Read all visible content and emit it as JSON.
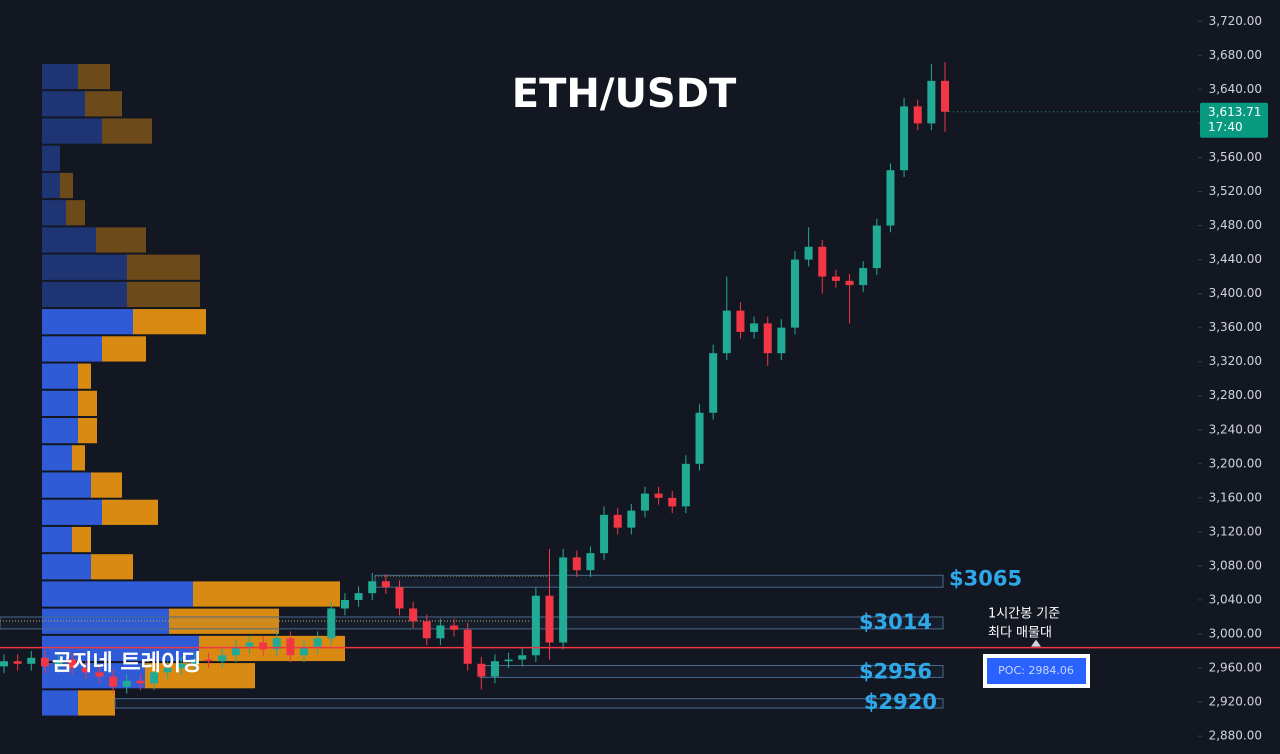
{
  "chart_data": {
    "type": "candlestick",
    "title": "ETH/USDT",
    "ylim": [
      2859,
      3745
    ],
    "yticks": [
      {
        "value": 3720,
        "label": "3,720.00"
      },
      {
        "value": 3680,
        "label": "3,680.00"
      },
      {
        "value": 3640,
        "label": "3,640.00"
      },
      {
        "value": 3600,
        "label": "3,600.00"
      },
      {
        "value": 3560,
        "label": "3,560.00"
      },
      {
        "value": 3520,
        "label": "3,520.00"
      },
      {
        "value": 3480,
        "label": "3,480.00"
      },
      {
        "value": 3440,
        "label": "3,440.00"
      },
      {
        "value": 3400,
        "label": "3,400.00"
      },
      {
        "value": 3360,
        "label": "3,360.00"
      },
      {
        "value": 3320,
        "label": "3,320.00"
      },
      {
        "value": 3280,
        "label": "3,280.00"
      },
      {
        "value": 3240,
        "label": "3,240.00"
      },
      {
        "value": 3200,
        "label": "3,200.00"
      },
      {
        "value": 3160,
        "label": "3,160.00"
      },
      {
        "value": 3120,
        "label": "3,120.00"
      },
      {
        "value": 3080,
        "label": "3,080.00"
      },
      {
        "value": 3040,
        "label": "3,040.00"
      },
      {
        "value": 3000,
        "label": "3,000.00"
      },
      {
        "value": 2960,
        "label": "2,960.00"
      },
      {
        "value": 2920,
        "label": "2,920.00"
      },
      {
        "value": 2880,
        "label": "2,880.00"
      }
    ],
    "up_color": "#22ab94",
    "down_color": "#f23645",
    "open": [
      2962,
      2968,
      2965,
      2972,
      2962,
      2970,
      2960,
      2955,
      2950,
      2938,
      2945,
      2942,
      2955,
      2960,
      2965,
      2970,
      2968,
      2975,
      2985,
      2990,
      2982,
      2995,
      2975,
      2985,
      2995,
      3030,
      3040,
      3048,
      3062,
      3055,
      3030,
      3015,
      2995,
      3010,
      3005,
      2965,
      2950,
      2968,
      2970,
      2975,
      3045,
      2990,
      3090,
      3075,
      3095,
      3140,
      3125,
      3145,
      3165,
      3160,
      3150,
      3200,
      3260,
      3330,
      3380,
      3355,
      3365,
      3330,
      3360,
      3440,
      3455,
      3420,
      3415,
      3410,
      3430,
      3480,
      3545,
      3620,
      3600,
      3650
    ],
    "high": [
      2976,
      2976,
      2980,
      2980,
      2978,
      2978,
      2968,
      2963,
      2958,
      2953,
      2953,
      2963,
      2968,
      2973,
      2978,
      2978,
      2983,
      2993,
      2998,
      2998,
      3003,
      3003,
      2993,
      3003,
      3038,
      3048,
      3056,
      3072,
      3070,
      3063,
      3038,
      3023,
      3018,
      3018,
      3013,
      2973,
      2976,
      2978,
      2983,
      3055,
      3100,
      3100,
      3098,
      3103,
      3150,
      3148,
      3153,
      3173,
      3173,
      3168,
      3210,
      3270,
      3340,
      3420,
      3390,
      3373,
      3373,
      3370,
      3450,
      3478,
      3463,
      3428,
      3423,
      3438,
      3488,
      3553,
      3630,
      3628,
      3670,
      3672
    ],
    "low": [
      2954,
      2957,
      2957,
      2954,
      2954,
      2952,
      2947,
      2942,
      2930,
      2930,
      2934,
      2934,
      2947,
      2952,
      2957,
      2960,
      2960,
      2967,
      2977,
      2974,
      2974,
      2967,
      2967,
      2977,
      2987,
      3022,
      3032,
      3040,
      3047,
      3022,
      3007,
      2987,
      2987,
      2997,
      2957,
      2935,
      2942,
      2960,
      2962,
      2967,
      2970,
      2982,
      3067,
      3067,
      3087,
      3117,
      3117,
      3137,
      3152,
      3142,
      3142,
      3192,
      3252,
      3322,
      3347,
      3347,
      3315,
      3322,
      3352,
      3432,
      3400,
      3407,
      3365,
      3402,
      3422,
      3472,
      3537,
      3592,
      3592,
      3590
    ],
    "close": [
      2968,
      2965,
      2972,
      2962,
      2970,
      2960,
      2955,
      2950,
      2938,
      2945,
      2942,
      2955,
      2960,
      2965,
      2970,
      2968,
      2975,
      2985,
      2990,
      2982,
      2995,
      2975,
      2985,
      2995,
      3030,
      3040,
      3048,
      3062,
      3055,
      3030,
      3015,
      2995,
      3010,
      3005,
      2965,
      2950,
      2968,
      2970,
      2975,
      3045,
      2990,
      3090,
      3075,
      3095,
      3140,
      3125,
      3145,
      3165,
      3160,
      3150,
      3200,
      3260,
      3330,
      3380,
      3355,
      3365,
      3330,
      3360,
      3440,
      3455,
      3420,
      3415,
      3410,
      3430,
      3480,
      3545,
      3620,
      3600,
      3650,
      3613.71
    ],
    "last_price": {
      "value": 3613.71,
      "label": "3,613.71",
      "time": "17:40",
      "color": "#089981"
    },
    "profile": {
      "bins": [
        3671,
        3639,
        3607,
        3575,
        3543,
        3511,
        3479,
        3447,
        3415,
        3383,
        3351,
        3319,
        3287,
        3255,
        3223,
        3191,
        3159,
        3127,
        3095,
        3063,
        3031,
        2999,
        2967,
        2935,
        2903
      ],
      "buy": [
        36,
        43,
        60,
        18,
        18,
        24,
        54,
        85,
        85,
        91,
        60,
        36,
        36,
        36,
        30,
        49,
        60,
        30,
        49,
        151,
        127,
        157,
        103,
        36
      ],
      "sell": [
        32,
        37,
        50,
        0,
        13,
        19,
        50,
        73,
        73,
        73,
        44,
        13,
        19,
        19,
        13,
        31,
        56,
        19,
        42,
        147,
        110,
        146,
        110,
        37
      ],
      "buy_color": "#2f5bd6",
      "sell_color": "#d98a12",
      "value_area_high": 3383
    },
    "levels": [
      {
        "label": "$3065",
        "value": 3065,
        "range": [
          3055,
          3069
        ]
      },
      {
        "label": "$3014",
        "value": 3014,
        "range": [
          3006,
          3020
        ]
      },
      {
        "label": "$2956",
        "value": 2956,
        "range": [
          2949,
          2963
        ]
      },
      {
        "label": "$2920",
        "value": 2920,
        "range": [
          2913,
          2924
        ]
      }
    ],
    "poc": {
      "label": "POC: 2984.06",
      "value": 2984.06,
      "color": "#f23645"
    },
    "notes": [
      "1시간봉 기준",
      "최다 매물대"
    ],
    "watermark": "곰지네 트레이딩"
  }
}
